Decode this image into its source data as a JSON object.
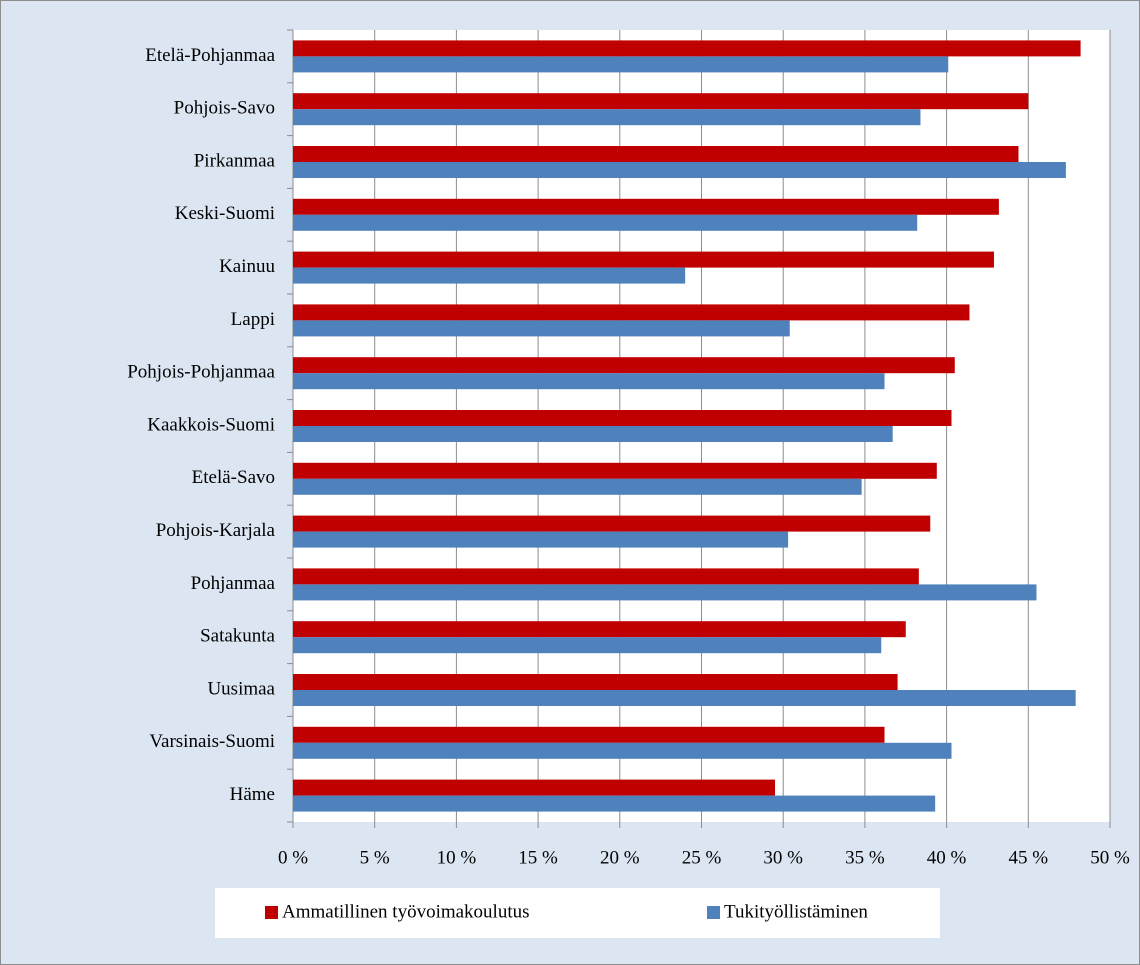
{
  "chart_data": {
    "type": "bar",
    "orientation": "horizontal",
    "categories": [
      "Etelä-Pohjanmaa",
      "Pohjois-Savo",
      "Pirkanmaa",
      "Keski-Suomi",
      "Kainuu",
      "Lappi",
      "Pohjois-Pohjanmaa",
      "Kaakkois-Suomi",
      "Etelä-Savo",
      "Pohjois-Karjala",
      "Pohjanmaa",
      "Satakunta",
      "Uusimaa",
      "Varsinais-Suomi",
      "Häme"
    ],
    "series": [
      {
        "name": "Ammatillinen työvoimakoulutus",
        "color": "#c00000",
        "values": [
          48.2,
          45.0,
          44.4,
          43.2,
          42.9,
          41.4,
          40.5,
          40.3,
          39.4,
          39.0,
          38.3,
          37.5,
          37.0,
          36.2,
          29.5
        ]
      },
      {
        "name": "Tukityöllistäminen",
        "color": "#4f81bd",
        "values": [
          40.1,
          38.4,
          47.3,
          38.2,
          24.0,
          30.4,
          36.2,
          36.7,
          34.8,
          30.3,
          45.5,
          36.0,
          47.9,
          40.3,
          39.3
        ]
      }
    ],
    "xlim": [
      0,
      50
    ],
    "xticks": [
      {
        "value": 0,
        "label": "0 %"
      },
      {
        "value": 5,
        "label": "5 %"
      },
      {
        "value": 10,
        "label": "10 %"
      },
      {
        "value": 15,
        "label": "15 %"
      },
      {
        "value": 20,
        "label": "20 %"
      },
      {
        "value": 25,
        "label": "25 %"
      },
      {
        "value": 30,
        "label": "30 %"
      },
      {
        "value": 35,
        "label": "35 %"
      },
      {
        "value": 40,
        "label": "40 %"
      },
      {
        "value": 45,
        "label": "45 %"
      },
      {
        "value": 50,
        "label": "50 %"
      }
    ],
    "grid": true,
    "legend": "bottom"
  }
}
